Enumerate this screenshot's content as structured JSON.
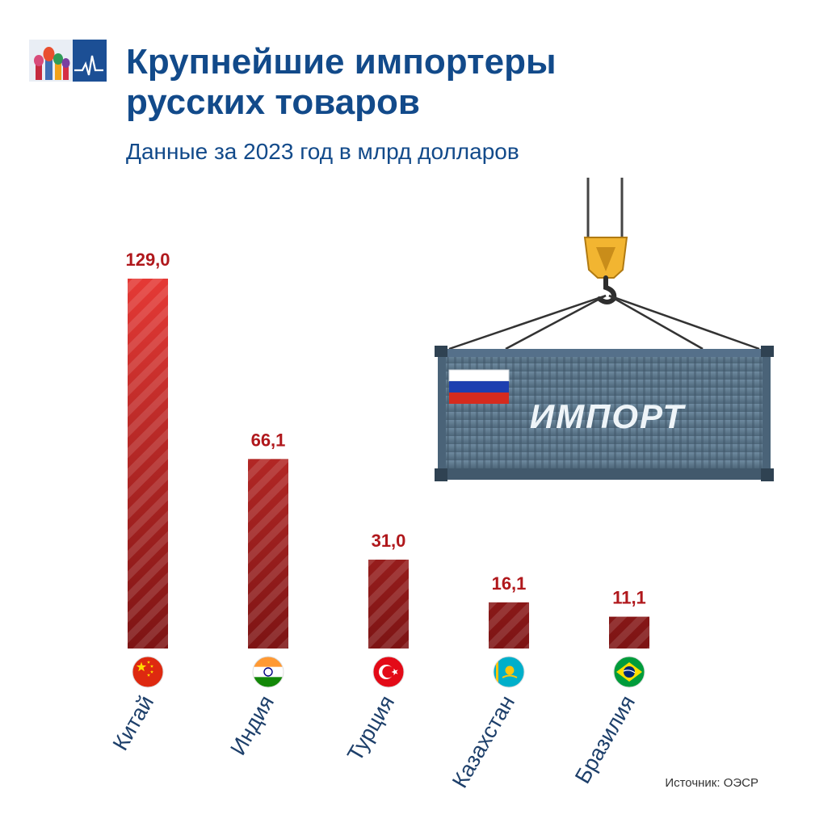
{
  "header": {
    "title": "Крупнейшие импортеры\nрусских товаров",
    "subtitle": "Данные за 2023 год в млрд долларов"
  },
  "container": {
    "label": "ИМПОРТ"
  },
  "source": "Источник: ОЭСР",
  "colors": {
    "title": "#124a8a",
    "value_label": "#b0181c",
    "bar_top": "#e53935",
    "bar_bottom": "#7d1414",
    "container": "#5f7c91"
  },
  "chart_data": {
    "type": "bar",
    "title": "Крупнейшие импортеры русских товаров",
    "subtitle": "Данные за 2023 год в млрд долларов",
    "categories": [
      "Китай",
      "Индия",
      "Турция",
      "Казахстан",
      "Бразилия"
    ],
    "values": [
      129.0,
      66.1,
      31.0,
      16.1,
      11.1
    ],
    "value_labels": [
      "129,0",
      "66,1",
      "31,0",
      "16,1",
      "11,1"
    ],
    "flags": [
      "china-flag",
      "india-flag",
      "turkey-flag",
      "kazakhstan-flag",
      "brazil-flag"
    ],
    "ylim": [
      0,
      129
    ],
    "grid": false,
    "legend": "none"
  }
}
